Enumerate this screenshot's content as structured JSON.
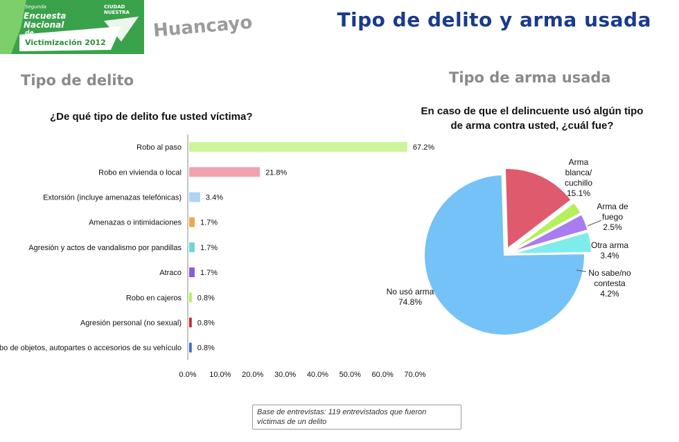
{
  "header": {
    "logo": {
      "survey_small": "Segunda",
      "survey_line1": "Encuesta",
      "survey_line2": "Nacional",
      "survey_line3": "de",
      "year_line": "Victimización 2012",
      "brand": "CIUDAD NUESTRA"
    },
    "city": "Huancayo",
    "title": "Tipo de delito y arma usada"
  },
  "left_section": {
    "heading": "Tipo de delito",
    "question": "¿De qué tipo de delito fue usted víctima?"
  },
  "right_section": {
    "heading": "Tipo de arma usada",
    "question_line1": "En caso de que el delincuente usó algún tipo",
    "question_line2": "de arma contra usted, ¿cuál fue?"
  },
  "footnote": {
    "line1": "Base de entrevistas: 119 entrevistados que fueron",
    "line2": "víctimas de un delito"
  },
  "chart_data": [
    {
      "type": "bar",
      "orientation": "horizontal",
      "title": "¿De qué tipo de delito fue usted víctima?",
      "categories": [
        "Robo al paso",
        "Robo en vivienda o local",
        "Extorsión (incluye amenazas telefónicas)",
        "Amenazas o intimidaciones",
        "Agresión y actos de vandalismo por pandillas",
        "Atraco",
        "Robo en cajeros",
        "Agresión personal (no sexual)",
        "Robo de objetos, autopartes o accesorios de su vehículo"
      ],
      "values": [
        67.2,
        21.8,
        3.4,
        1.7,
        1.7,
        1.7,
        0.8,
        0.8,
        0.8
      ],
      "value_labels": [
        "67.2%",
        "21.8%",
        "3.4%",
        "1.7%",
        "1.7%",
        "1.7%",
        "0.8%",
        "0.8%",
        "0.8%"
      ],
      "colors": [
        "#cdf49a",
        "#f0a3ad",
        "#aed3f6",
        "#f0a64a",
        "#6fd6d6",
        "#8a5fd6",
        "#b4f05a",
        "#cc2233",
        "#3b6fc4"
      ],
      "xlim": [
        0,
        70
      ],
      "xticks": [
        "0.0%",
        "10.0%",
        "20.0%",
        "30.0%",
        "40.0%",
        "50.0%",
        "60.0%",
        "70.0%"
      ],
      "grid": false
    },
    {
      "type": "pie",
      "title": "En caso de que el delincuente usó algún tipo de arma contra usted, ¿cuál fue?",
      "slices": [
        {
          "label_lines": [
            "No usó arma",
            "74.8%"
          ],
          "value": 74.8,
          "color": "#74c2f7",
          "exploded": false
        },
        {
          "label_lines": [
            "Arma",
            "blanca/",
            "cuchillo",
            "15.1%"
          ],
          "value": 15.1,
          "color": "#e05a6e",
          "exploded": true
        },
        {
          "label_lines": [
            "Arma de",
            "fuego",
            "2.5%"
          ],
          "value": 2.5,
          "color": "#b4f05a",
          "exploded": true
        },
        {
          "label_lines": [
            "Otra arma",
            "3.4%"
          ],
          "value": 3.4,
          "color": "#a77df0",
          "exploded": true
        },
        {
          "label_lines": [
            "No sabe/no",
            "contesta",
            "4.2%"
          ],
          "value": 4.2,
          "color": "#7fecec",
          "exploded": true
        }
      ]
    }
  ]
}
